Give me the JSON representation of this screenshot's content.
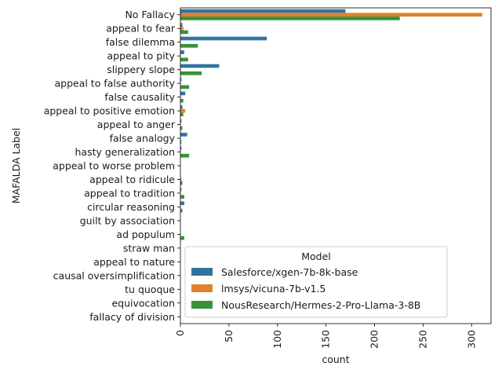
{
  "chart_data": {
    "type": "bar",
    "orientation": "horizontal",
    "categories": [
      "No Fallacy",
      "appeal to fear",
      "false dilemma",
      "appeal to pity",
      "slippery slope",
      "appeal to false authority",
      "false causality",
      "appeal to positive emotion",
      "appeal to anger",
      "false analogy",
      "hasty generalization",
      "appeal to worse problem",
      "appeal to ridicule",
      "appeal to tradition",
      "circular reasoning",
      "guilt by association",
      "ad populum",
      "straw man",
      "appeal to nature",
      "causal oversimplification",
      "tu quoque",
      "equivocation",
      "fallacy of division"
    ],
    "series": [
      {
        "name": "Salesforce/xgen-7b-8k-base",
        "color": "#3274a1",
        "values": [
          170,
          2,
          89,
          4,
          40,
          1,
          5,
          2,
          1,
          7,
          1,
          0,
          0,
          1,
          4,
          0,
          0,
          0,
          0,
          0,
          0,
          0,
          0
        ]
      },
      {
        "name": "lmsys/vicuna-7b-v1.5",
        "color": "#e1812c",
        "values": [
          311,
          3,
          0,
          0,
          0,
          0,
          0,
          5,
          0,
          0,
          0,
          0,
          1,
          0,
          0,
          0,
          0,
          0,
          0,
          0,
          0,
          0,
          0
        ]
      },
      {
        "name": "NousResearch/Hermes-2-Pro-Llama-3-8B",
        "color": "#3a923a",
        "values": [
          226,
          8,
          18,
          8,
          22,
          9,
          3,
          3,
          2,
          1,
          9,
          0,
          2,
          4,
          2,
          0,
          4,
          0,
          0,
          0,
          0,
          0,
          0
        ]
      }
    ],
    "xlabel": "count",
    "ylabel": "MAFALDA Label",
    "xlim": [
      0,
      320
    ],
    "xticks": [
      0,
      50,
      100,
      150,
      200,
      250,
      300
    ],
    "legend": {
      "title": "Model",
      "placement": "lower-right"
    },
    "grid": false
  }
}
